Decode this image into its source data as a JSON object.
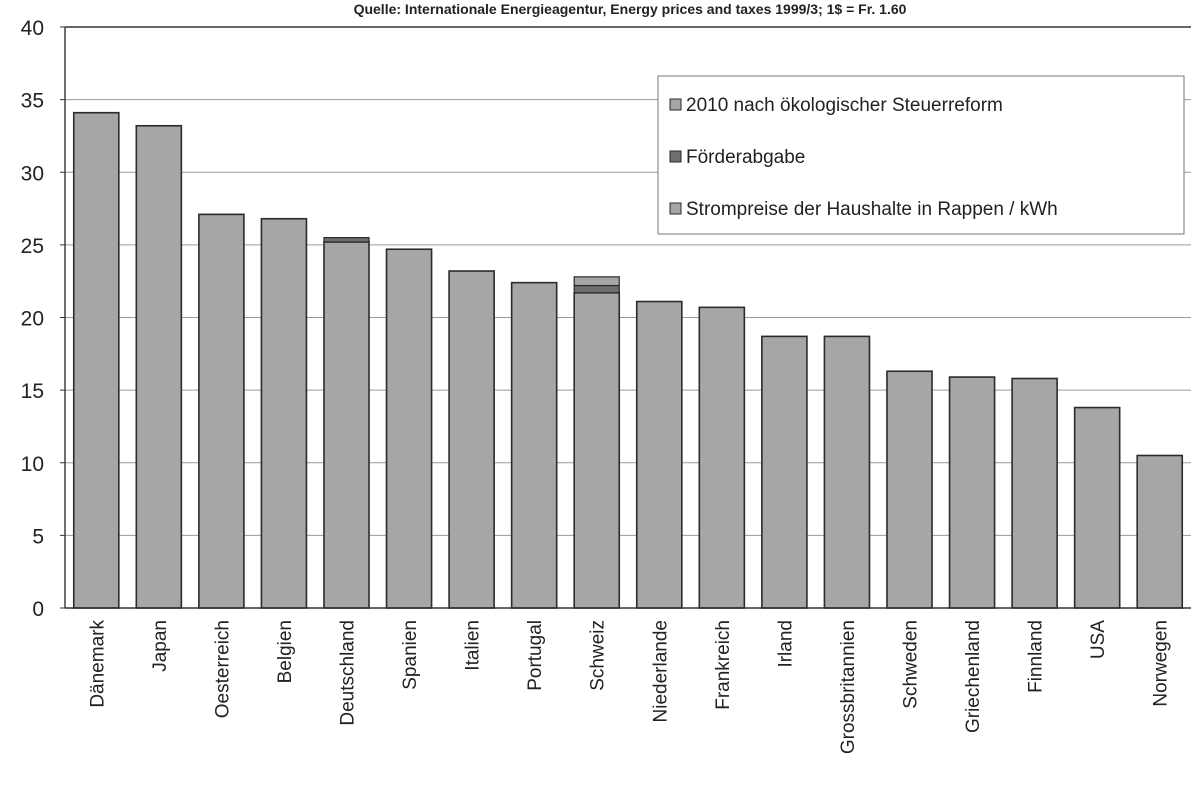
{
  "source_note": "Quelle: Internationale Energieagentur, Energy prices and taxes 1999/3; 1$ = Fr. 1.60",
  "colors": {
    "bar_fill": "#a6a6a6",
    "bar_stroke": "#2b2b2b",
    "forderabgabe": "#6e6e6e",
    "grid": "#9a9a9a",
    "axis": "#333333"
  },
  "chart_data": {
    "type": "bar",
    "stacked": true,
    "title": "",
    "xlabel": "",
    "ylabel": "",
    "ylim": [
      0,
      40
    ],
    "yticks": [
      0,
      5,
      10,
      15,
      20,
      25,
      30,
      35,
      40
    ],
    "grid": true,
    "legend_position": "top-right",
    "categories": [
      "Dänemark",
      "Japan",
      "Oesterreich",
      "Belgien",
      "Deutschland",
      "Spanien",
      "Italien",
      "Portugal",
      "Schweiz",
      "Niederlande",
      "Frankreich",
      "Irland",
      "Grossbritannien",
      "Schweden",
      "Griechenland",
      "Finnland",
      "USA",
      "Norwegen"
    ],
    "series": [
      {
        "name": "Strompreise der Haushalte in Rappen / kWh",
        "values": [
          34.1,
          33.2,
          27.1,
          26.8,
          25.2,
          24.7,
          23.2,
          22.4,
          21.7,
          21.1,
          20.7,
          18.7,
          18.7,
          16.3,
          15.9,
          15.8,
          13.8,
          10.5
        ]
      },
      {
        "name": "Förderabgabe",
        "values": [
          0,
          0,
          0,
          0,
          0.3,
          0,
          0,
          0,
          0.5,
          0,
          0,
          0,
          0,
          0,
          0,
          0,
          0,
          0
        ]
      },
      {
        "name": "2010 nach ökologischer Steuerreform",
        "values": [
          0,
          0,
          0,
          0,
          0,
          0,
          0,
          0,
          0.6,
          0,
          0,
          0,
          0,
          0,
          0,
          0,
          0,
          0
        ]
      }
    ],
    "legend_order": [
      "2010 nach ökologischer Steuerreform",
      "Förderabgabe",
      "Strompreise der Haushalte in Rappen / kWh"
    ]
  }
}
